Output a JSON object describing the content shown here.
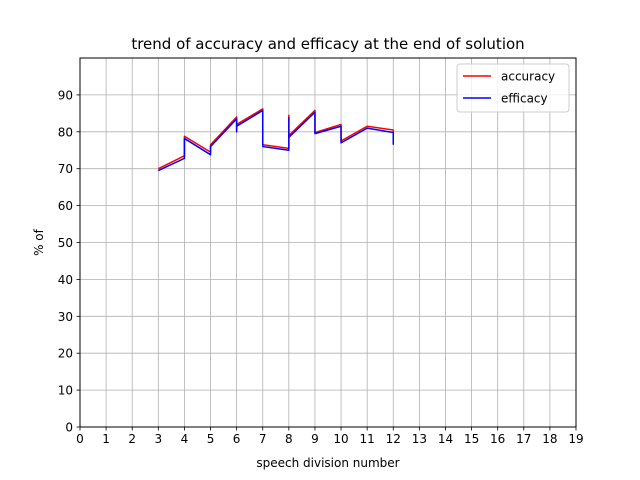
{
  "chart_data": {
    "type": "line",
    "title": "trend of accuracy and efficacy at the end of solution",
    "xlabel": "speech division number",
    "ylabel": "% of",
    "xlim": [
      0,
      19
    ],
    "ylim": [
      0,
      100
    ],
    "xticks": [
      0,
      1,
      2,
      3,
      4,
      5,
      6,
      7,
      8,
      9,
      10,
      11,
      12,
      13,
      14,
      15,
      16,
      17,
      18,
      19
    ],
    "yticks": [
      0,
      10,
      20,
      30,
      40,
      50,
      60,
      70,
      80,
      90
    ],
    "grid": true,
    "legend_position": "top-right",
    "series": [
      {
        "name": "accuracy",
        "color": "#ff0000",
        "x": [
          3,
          4,
          4,
          5,
          5,
          6,
          6,
          6,
          7,
          7,
          8,
          8,
          8,
          9,
          9,
          10,
          10,
          11,
          12,
          12
        ],
        "y": [
          70.0,
          73.5,
          78.8,
          74.5,
          76.5,
          84.0,
          80.5,
          82.0,
          86.2,
          76.5,
          75.5,
          84.5,
          79.0,
          85.8,
          79.8,
          82.0,
          77.5,
          81.5,
          80.5,
          77.0
        ]
      },
      {
        "name": "efficacy",
        "color": "#0000ff",
        "x": [
          3,
          4,
          4,
          5,
          5,
          6,
          6,
          6,
          7,
          7,
          8,
          8,
          8,
          9,
          9,
          10,
          10,
          11,
          12,
          12
        ],
        "y": [
          69.5,
          72.8,
          78.2,
          73.8,
          76.0,
          83.5,
          80.0,
          81.5,
          85.8,
          76.0,
          75.0,
          83.8,
          78.5,
          85.3,
          79.5,
          81.5,
          77.0,
          81.0,
          79.8,
          76.5
        ]
      }
    ]
  }
}
